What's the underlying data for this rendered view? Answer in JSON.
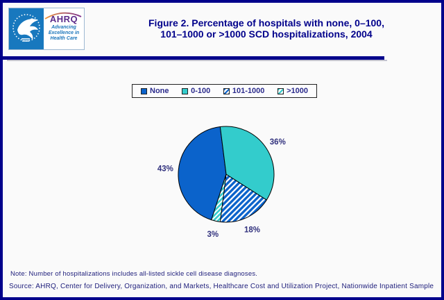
{
  "header": {
    "ahrq_logo_text": "AHRQ",
    "ahrq_tagline": "Advancing\nExcellence in\nHealth Care",
    "title_line1": "Figure 2. Percentage of hospitals with none, 0–100,",
    "title_line2": "101–1000 or >1000 SCD hospitalizations, 2004"
  },
  "chart_data": {
    "type": "pie",
    "title": "Figure 2. Percentage of hospitals with none, 0–100, 101–1000 or >1000 SCD hospitalizations, 2004",
    "legend_position": "top",
    "start_angle_deg_clockwise_from_top": 198,
    "label_color": "#32327e",
    "slices": [
      {
        "label": "None",
        "value": 43,
        "data_label": "43%",
        "color": "#0b63cb",
        "pattern": "solid"
      },
      {
        "label": "0-100",
        "value": 36,
        "data_label": "36%",
        "color": "#33cccc",
        "pattern": "solid"
      },
      {
        "label": "101-1000",
        "value": 18,
        "data_label": "18%",
        "color": "#0b63cb",
        "pattern": "diagonal-stripes-on-white"
      },
      {
        "label": ">1000",
        "value": 3,
        "data_label": "3%",
        "color": "#33cccc",
        "pattern": "diagonal-stripes-on-white"
      }
    ]
  },
  "footer": {
    "note": "Note: Number of hospitalizations includes all-listed sickle cell disease diagnoses.",
    "source": "Source: AHRQ, Center for Delivery, Organization, and Markets, Healthcare Cost and Utilization Project, Nationwide Inpatient Sample"
  }
}
